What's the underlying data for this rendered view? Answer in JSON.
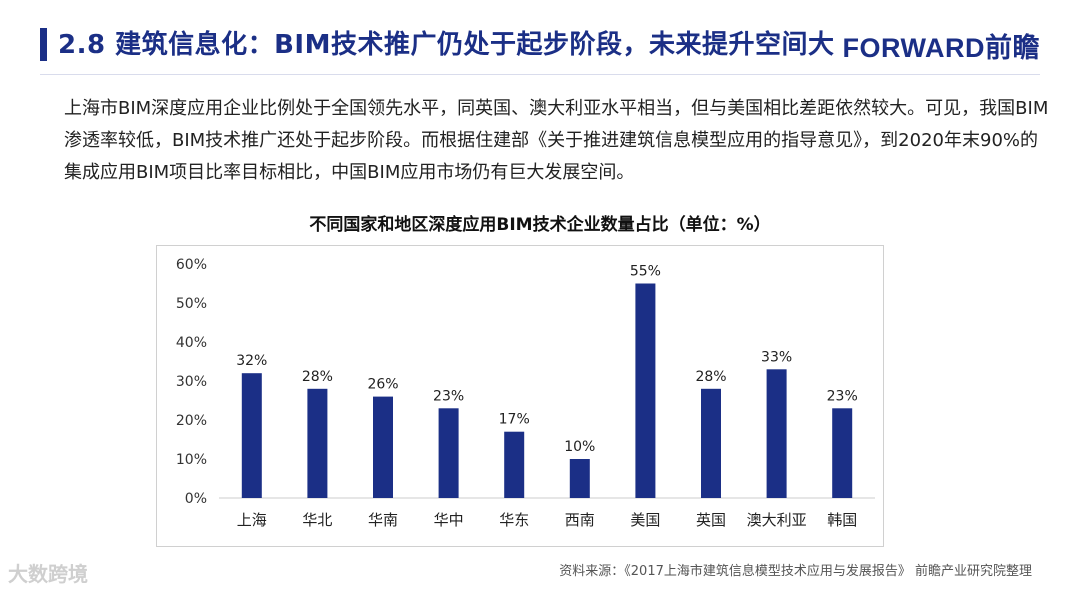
{
  "header": {
    "title": "2.8 建筑信息化：BIM技术推广仍处于起步阶段，未来提升空间大",
    "logo": "FORWARD前瞻"
  },
  "intro": {
    "text": "上海市BIM深度应用企业比例处于全国领先水平，同英国、澳大利亚水平相当，但与美国相比差距依然较大。可见，我国BIM渗透率较低，BIM技术推广还处于起步阶段。而根据住建部《关于推进建筑信息模型应用的指导意见》，到2020年末90%的集成应用BIM项目比率目标相比，中国BIM应用市场仍有巨大发展空间。"
  },
  "footer": {
    "source": "资料来源：《2017上海市建筑信息模型技术应用与发展报告》 前瞻产业研究院整理",
    "mark": "大数跨境"
  },
  "colors": {
    "accent": "#1b2f86",
    "bar": "#1b2f86"
  },
  "chart_data": {
    "type": "bar",
    "title": "不同国家和地区深度应用BIM技术企业数量占比（单位：%）",
    "xlabel": "",
    "ylabel": "",
    "categories": [
      "上海",
      "华北",
      "华南",
      "华中",
      "华东",
      "西南",
      "美国",
      "英国",
      "澳大利亚",
      "韩国"
    ],
    "values": [
      32,
      28,
      26,
      23,
      17,
      10,
      55,
      28,
      33,
      23
    ],
    "value_labels": [
      "32%",
      "28%",
      "26%",
      "23%",
      "17%",
      "10%",
      "55%",
      "28%",
      "33%",
      "23%"
    ],
    "ylim": [
      0,
      60
    ],
    "yticks": [
      0,
      10,
      20,
      30,
      40,
      50,
      60
    ],
    "ytick_labels": [
      "0%",
      "10%",
      "20%",
      "30%",
      "40%",
      "50%",
      "60%"
    ],
    "grid": false,
    "legend": "none"
  }
}
